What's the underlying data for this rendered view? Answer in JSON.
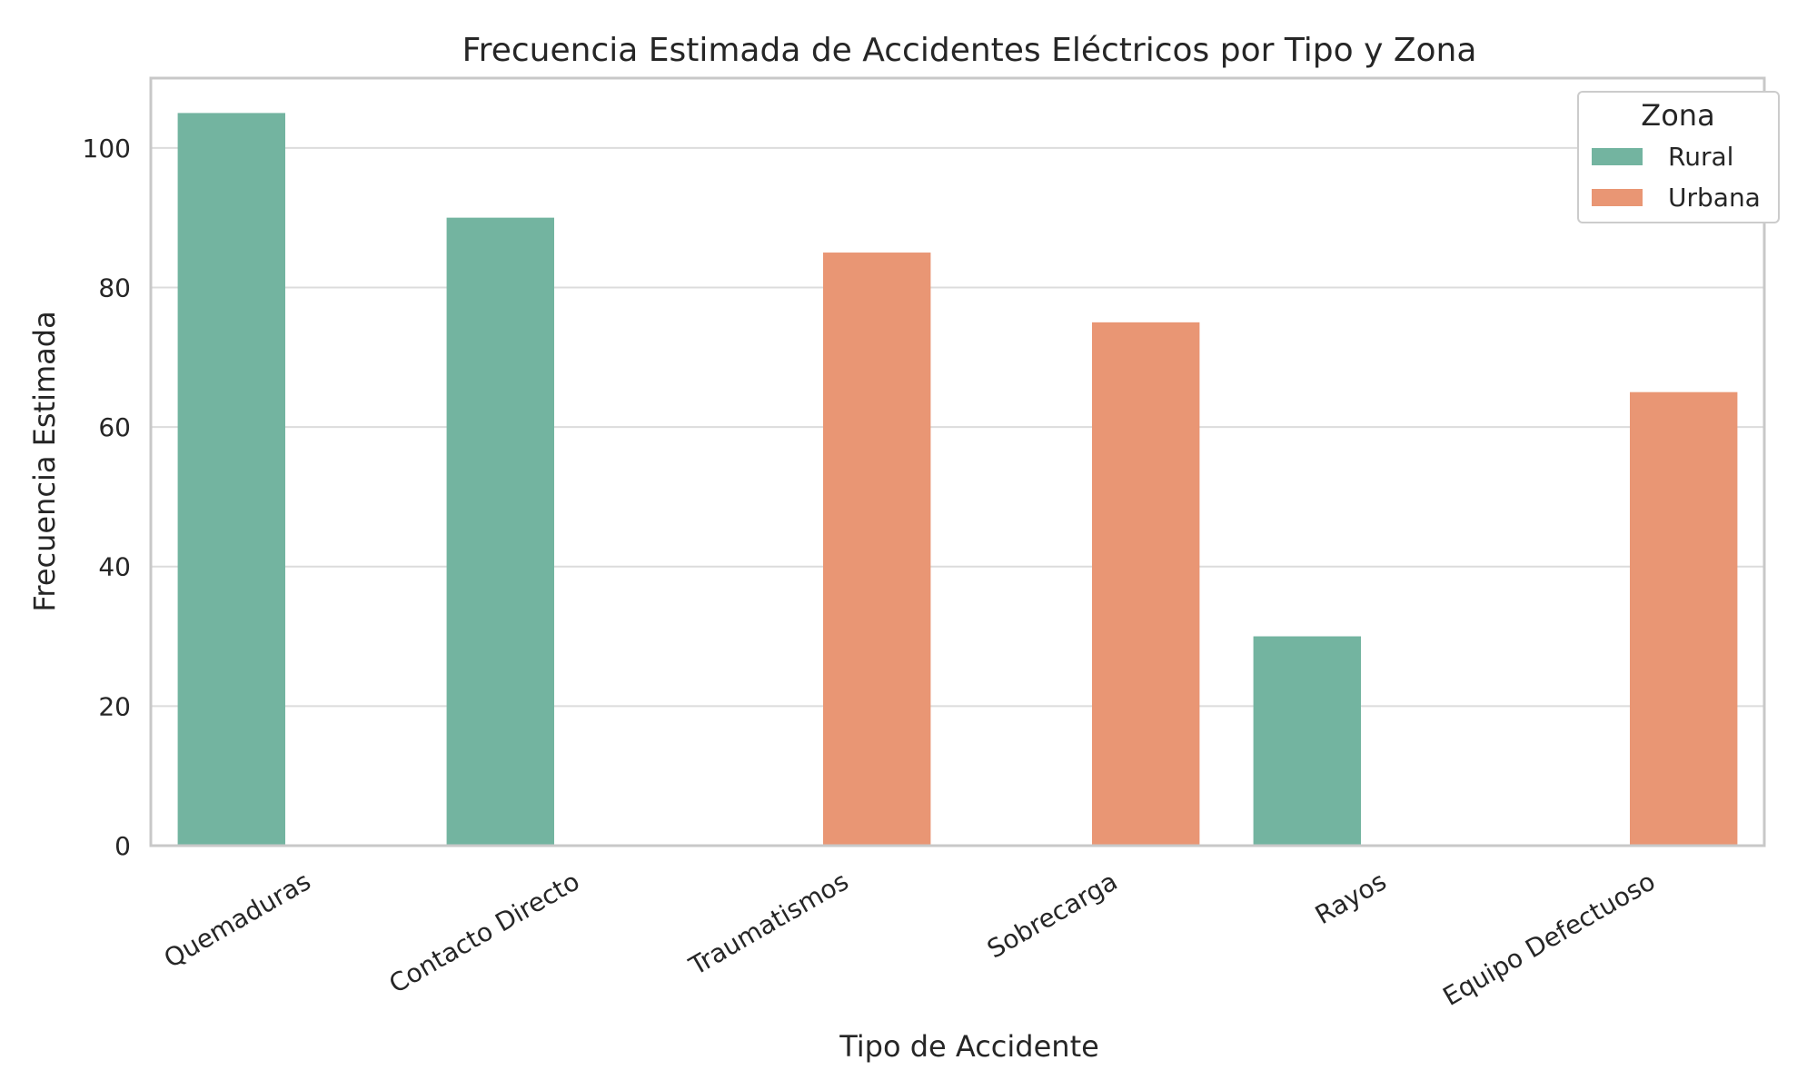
{
  "chart_data": {
    "type": "bar",
    "title": "Frecuencia Estimada de Accidentes Eléctricos por Tipo y Zona",
    "xlabel": "Tipo de Accidente",
    "ylabel": "Frecuencia Estimada",
    "categories": [
      "Quemaduras",
      "Contacto Directo",
      "Traumatismos",
      "Sobrecarga",
      "Rayos",
      "Equipo Defectuoso"
    ],
    "series": [
      {
        "name": "Rural",
        "color": "#73b4a0",
        "values": [
          105,
          90,
          0,
          0,
          30,
          0
        ]
      },
      {
        "name": "Urbana",
        "color": "#e99674",
        "values": [
          0,
          0,
          85,
          75,
          0,
          65
        ]
      }
    ],
    "yticks": [
      0,
      20,
      40,
      60,
      80,
      100
    ],
    "ylim": [
      0,
      110
    ],
    "grid": true,
    "legend": {
      "title": "Zona",
      "position": "top-right"
    }
  }
}
